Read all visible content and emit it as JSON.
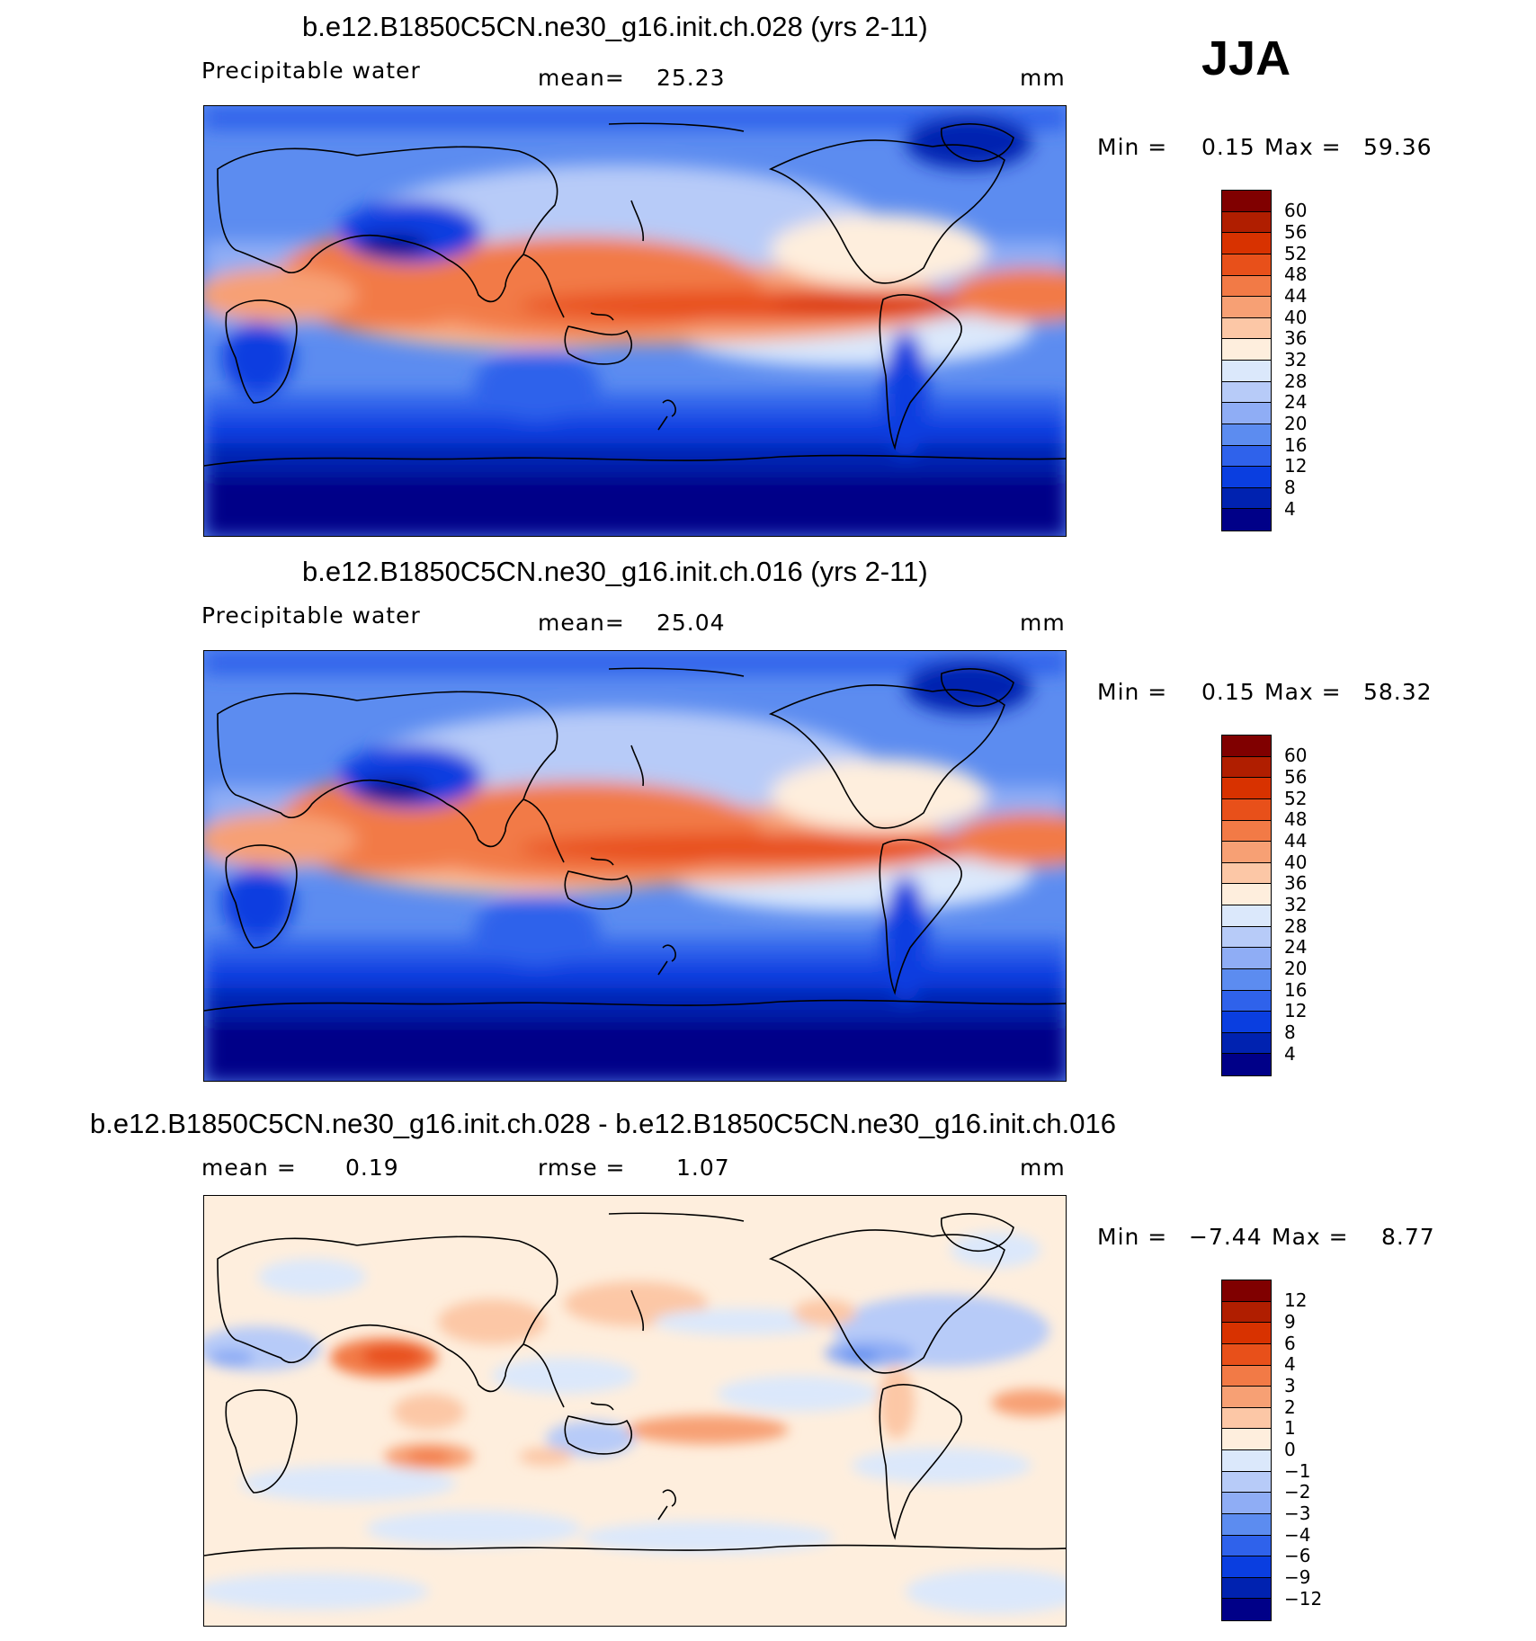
{
  "season": "JJA",
  "panels": [
    {
      "title": "b.e12.B1850C5CN.ne30_g16.init.ch.028 (yrs 2-11)",
      "variable": "Precipitable water",
      "stat1_label": "mean=",
      "stat1_value": "25.23",
      "units": "mm",
      "min_label": "Min =",
      "min_value": "0.15",
      "max_label": "Max =",
      "max_value": "59.36",
      "colorbar_labels": [
        "60",
        "56",
        "52",
        "48",
        "44",
        "40",
        "36",
        "32",
        "28",
        "24",
        "20",
        "16",
        "12",
        "8",
        "4"
      ]
    },
    {
      "title": "b.e12.B1850C5CN.ne30_g16.init.ch.016 (yrs 2-11)",
      "variable": "Precipitable water",
      "stat1_label": "mean=",
      "stat1_value": "25.04",
      "units": "mm",
      "min_label": "Min =",
      "min_value": "0.15",
      "max_label": "Max =",
      "max_value": "58.32",
      "colorbar_labels": [
        "60",
        "56",
        "52",
        "48",
        "44",
        "40",
        "36",
        "32",
        "28",
        "24",
        "20",
        "16",
        "12",
        "8",
        "4"
      ]
    },
    {
      "title": "b.e12.B1850C5CN.ne30_g16.init.ch.028 - b.e12.B1850C5CN.ne30_g16.init.ch.016",
      "stat1_label": "mean =",
      "stat1_value": "0.19",
      "stat2_label": "rmse =",
      "stat2_value": "1.07",
      "units": "mm",
      "min_label": "Min =",
      "min_value": "−7.44",
      "max_label": "Max =",
      "max_value": "8.77",
      "colorbar_labels": [
        "12",
        "9",
        "6",
        "4",
        "3",
        "2",
        "1",
        "0",
        "−1",
        "−2",
        "−3",
        "−4",
        "−6",
        "−9",
        "−12"
      ]
    }
  ],
  "colors": {
    "main_scale": [
      "#800000",
      "#b01e00",
      "#d83200",
      "#e8501a",
      "#f27a46",
      "#f7a074",
      "#fcc7a6",
      "#feeedd",
      "#dbe8fb",
      "#b7cbf8",
      "#8fadf5",
      "#5c8cf0",
      "#2f62eb",
      "#0a3ee0",
      "#0022b0",
      "#000088"
    ],
    "diff_scale": [
      "#800000",
      "#b01e00",
      "#d83200",
      "#e8501a",
      "#f27a46",
      "#f7a074",
      "#fcc7a6",
      "#feeedd",
      "#dbe8fb",
      "#b7cbf8",
      "#8fadf5",
      "#5c8cf0",
      "#2f62eb",
      "#0a3ee0",
      "#0022b0",
      "#000088"
    ]
  }
}
